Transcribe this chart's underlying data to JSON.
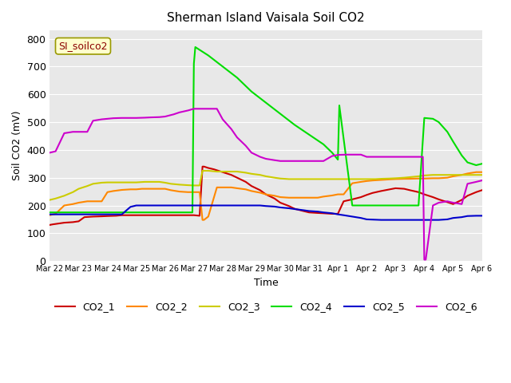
{
  "title": "Sherman Island Vaisala Soil CO2",
  "ylabel": "Soil CO2 (mV)",
  "xlabel": "Time",
  "annotation": "SI_soilco2",
  "ylim": [
    0,
    830
  ],
  "yticks": [
    0,
    100,
    200,
    300,
    400,
    500,
    600,
    700,
    800
  ],
  "background_color": "#e8e8e8",
  "line_colors": {
    "CO2_1": "#cc0000",
    "CO2_2": "#ff8800",
    "CO2_3": "#cccc00",
    "CO2_4": "#00dd00",
    "CO2_5": "#0000cc",
    "CO2_6": "#cc00cc"
  },
  "xtick_labels": [
    "Mar 22",
    "Mar 23",
    "Mar 24",
    "Mar 25",
    "Mar 26",
    "Mar 27",
    "Mar 28",
    "Mar 29",
    "Mar 30",
    "Mar 31",
    "Apr 1",
    "Apr 2",
    "Apr 3",
    "Apr 4",
    "Apr 5",
    "Apr 6"
  ],
  "series": {
    "CO2_1": {
      "x": [
        0,
        0.1,
        0.3,
        0.5,
        0.8,
        1.0,
        1.2,
        1.5,
        1.8,
        2.0,
        2.3,
        2.5,
        2.7,
        3.0,
        3.2,
        3.5,
        3.8,
        4.0,
        4.2,
        4.5,
        4.8,
        5.0,
        5.2,
        5.3,
        5.35,
        5.5,
        5.7,
        6.0,
        6.3,
        6.5,
        6.8,
        7.0,
        7.3,
        7.5,
        7.8,
        8.0,
        8.3,
        8.5,
        8.8,
        9.0,
        9.3,
        9.5,
        9.8,
        10.0,
        10.2,
        10.5,
        10.8,
        11.0,
        11.2,
        11.5,
        11.8,
        12.0,
        12.3,
        12.5,
        12.8,
        13.0,
        13.3,
        13.5,
        13.8,
        14.0,
        14.3,
        14.5,
        14.8,
        15.0
      ],
      "y": [
        130,
        132,
        135,
        138,
        140,
        143,
        158,
        160,
        161,
        162,
        163,
        165,
        165,
        165,
        165,
        165,
        165,
        165,
        165,
        165,
        165,
        165,
        163,
        340,
        340,
        335,
        330,
        320,
        310,
        300,
        285,
        270,
        255,
        240,
        225,
        210,
        198,
        188,
        180,
        175,
        173,
        172,
        170,
        170,
        215,
        222,
        230,
        238,
        245,
        252,
        258,
        262,
        260,
        255,
        248,
        240,
        230,
        222,
        212,
        205,
        220,
        235,
        248,
        255
      ]
    },
    "CO2_2": {
      "x": [
        0,
        0.2,
        0.5,
        0.8,
        1.0,
        1.3,
        1.5,
        1.8,
        2.0,
        2.2,
        2.5,
        2.8,
        3.0,
        3.2,
        3.5,
        3.8,
        4.0,
        4.2,
        4.5,
        4.8,
        5.0,
        5.2,
        5.3,
        5.35,
        5.5,
        5.8,
        6.0,
        6.3,
        6.5,
        6.8,
        7.0,
        7.3,
        7.5,
        7.8,
        8.0,
        8.3,
        8.5,
        8.8,
        9.0,
        9.3,
        9.5,
        9.8,
        10.0,
        10.2,
        10.5,
        10.8,
        11.0,
        11.2,
        11.5,
        11.8,
        12.0,
        12.3,
        12.5,
        12.8,
        13.0,
        13.3,
        13.5,
        13.8,
        14.0,
        14.3,
        14.5,
        14.8,
        15.0
      ],
      "y": [
        165,
        170,
        200,
        205,
        210,
        215,
        215,
        215,
        248,
        252,
        256,
        258,
        258,
        260,
        260,
        260,
        260,
        255,
        250,
        248,
        248,
        248,
        148,
        148,
        160,
        265,
        265,
        265,
        262,
        258,
        252,
        246,
        240,
        235,
        230,
        228,
        228,
        228,
        228,
        228,
        232,
        236,
        240,
        240,
        280,
        285,
        288,
        290,
        292,
        294,
        295,
        296,
        296,
        297,
        297,
        298,
        298,
        300,
        305,
        310,
        315,
        320,
        320
      ]
    },
    "CO2_3": {
      "x": [
        0,
        0.2,
        0.5,
        0.8,
        1.0,
        1.3,
        1.5,
        1.8,
        2.0,
        2.2,
        2.5,
        2.8,
        3.0,
        3.3,
        3.5,
        3.8,
        4.0,
        4.2,
        4.5,
        4.8,
        5.0,
        5.2,
        5.3,
        5.5,
        5.8,
        6.0,
        6.3,
        6.5,
        6.8,
        7.0,
        7.3,
        7.5,
        7.8,
        8.0,
        8.3,
        8.5,
        8.8,
        9.0,
        9.3,
        9.5,
        9.8,
        10.0,
        10.3,
        10.5,
        10.8,
        11.0,
        11.3,
        11.5,
        11.8,
        12.0,
        12.3,
        12.5,
        12.8,
        13.0,
        13.3,
        13.5,
        13.8,
        14.0,
        14.3,
        14.5,
        14.8,
        15.0
      ],
      "y": [
        220,
        225,
        235,
        248,
        260,
        270,
        278,
        282,
        283,
        283,
        283,
        283,
        283,
        285,
        285,
        285,
        282,
        278,
        275,
        273,
        272,
        272,
        325,
        325,
        322,
        322,
        322,
        322,
        318,
        314,
        310,
        305,
        300,
        297,
        295,
        295,
        295,
        295,
        295,
        295,
        295,
        295,
        295,
        295,
        295,
        295,
        295,
        296,
        297,
        298,
        300,
        302,
        305,
        308,
        310,
        310,
        310,
        310,
        310,
        310,
        310,
        310
      ]
    },
    "CO2_4": {
      "x": [
        0,
        0.5,
        1.0,
        1.5,
        2.0,
        2.5,
        3.0,
        3.5,
        4.0,
        4.5,
        4.95,
        5.0,
        5.05,
        5.5,
        6.0,
        6.5,
        7.0,
        7.5,
        8.0,
        8.5,
        9.0,
        9.5,
        9.8,
        10.0,
        10.05,
        10.1,
        10.5,
        11.0,
        11.3,
        11.5,
        11.8,
        12.0,
        12.3,
        12.5,
        12.8,
        13.0,
        13.3,
        13.5,
        13.8,
        14.0,
        14.3,
        14.5,
        14.8,
        15.0
      ],
      "y": [
        175,
        175,
        175,
        175,
        175,
        175,
        175,
        175,
        175,
        175,
        175,
        710,
        770,
        740,
        700,
        660,
        610,
        570,
        530,
        490,
        455,
        420,
        390,
        365,
        560,
        520,
        200,
        200,
        200,
        200,
        200,
        200,
        200,
        200,
        200,
        515,
        512,
        500,
        465,
        430,
        380,
        355,
        345,
        350
      ]
    },
    "CO2_5": {
      "x": [
        0,
        0.5,
        1.0,
        1.5,
        2.0,
        2.5,
        2.8,
        3.0,
        3.3,
        3.5,
        3.8,
        4.0,
        4.3,
        4.5,
        4.8,
        5.0,
        5.3,
        5.5,
        5.8,
        6.0,
        6.3,
        6.5,
        6.8,
        7.0,
        7.3,
        7.5,
        7.8,
        8.0,
        8.3,
        8.5,
        8.8,
        9.0,
        9.3,
        9.5,
        9.8,
        10.0,
        10.2,
        10.5,
        10.8,
        11.0,
        11.5,
        12.0,
        12.5,
        13.0,
        13.2,
        13.5,
        13.8,
        14.0,
        14.3,
        14.5,
        14.8,
        15.0
      ],
      "y": [
        168,
        168,
        168,
        168,
        168,
        168,
        195,
        200,
        200,
        200,
        200,
        200,
        200,
        200,
        200,
        200,
        200,
        200,
        200,
        200,
        200,
        200,
        200,
        200,
        200,
        198,
        196,
        193,
        190,
        187,
        183,
        180,
        178,
        175,
        172,
        168,
        165,
        160,
        155,
        150,
        148,
        148,
        148,
        148,
        148,
        148,
        150,
        155,
        158,
        162,
        163,
        163
      ]
    },
    "CO2_6": {
      "x": [
        0,
        0.2,
        0.5,
        0.8,
        1.0,
        1.3,
        1.5,
        1.8,
        2.0,
        2.2,
        2.5,
        2.8,
        3.0,
        3.3,
        3.5,
        3.8,
        4.0,
        4.3,
        4.5,
        4.8,
        5.0,
        5.3,
        5.5,
        5.8,
        6.0,
        6.3,
        6.5,
        6.8,
        7.0,
        7.3,
        7.5,
        7.8,
        8.0,
        8.3,
        8.5,
        8.8,
        9.0,
        9.3,
        9.5,
        9.8,
        10.0,
        10.3,
        10.5,
        10.8,
        11.0,
        11.3,
        11.5,
        11.8,
        12.0,
        12.3,
        12.5,
        12.8,
        12.95,
        13.0,
        13.05,
        13.3,
        13.5,
        13.8,
        14.0,
        14.3,
        14.5,
        14.8,
        15.0
      ],
      "y": [
        390,
        395,
        460,
        465,
        465,
        465,
        505,
        510,
        512,
        514,
        515,
        515,
        515,
        516,
        517,
        518,
        520,
        528,
        535,
        542,
        548,
        548,
        548,
        548,
        510,
        475,
        445,
        415,
        390,
        375,
        368,
        363,
        360,
        360,
        360,
        360,
        360,
        360,
        360,
        378,
        382,
        383,
        383,
        383,
        375,
        375,
        375,
        375,
        375,
        375,
        375,
        375,
        375,
        5,
        5,
        200,
        210,
        215,
        210,
        205,
        278,
        285,
        290
      ]
    }
  }
}
